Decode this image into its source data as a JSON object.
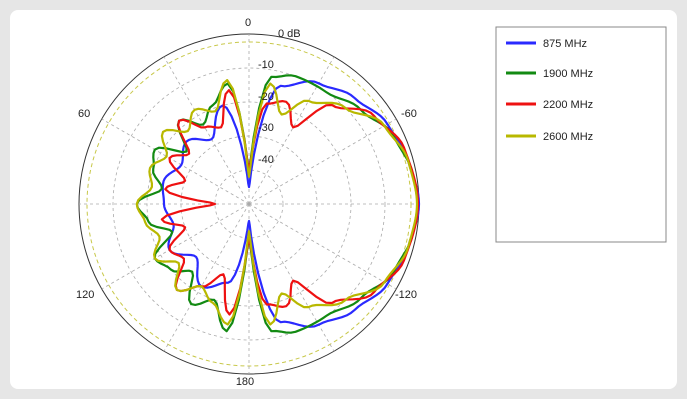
{
  "chart_data": {
    "type": "polar-line",
    "title": "",
    "radial_unit_label": "0 dB",
    "angle_ticks": [
      "0",
      "60",
      "120",
      "180",
      "-120",
      "-60"
    ],
    "radius_ticks": [
      "-10",
      "-20",
      "-30",
      "-40"
    ],
    "r_range_db": [
      -50,
      0
    ],
    "angle_direction": "clockwise-negative (0 at top, -60 upper right, 60 upper left)",
    "grid": true,
    "legend_position": "right",
    "series": [
      {
        "name": "875 MHz",
        "color": "#2a2aff",
        "points": [
          [
            0,
            -45
          ],
          [
            -15,
            -14
          ],
          [
            -30,
            -9
          ],
          [
            -45,
            -6
          ],
          [
            -60,
            -3
          ],
          [
            -75,
            -1.5
          ],
          [
            -90,
            0
          ],
          [
            -105,
            -1.5
          ],
          [
            -120,
            -3
          ],
          [
            -135,
            -6
          ],
          [
            -150,
            -9
          ],
          [
            -165,
            -14
          ],
          [
            180,
            -45
          ],
          [
            165,
            -26
          ],
          [
            150,
            -22
          ],
          [
            135,
            -28
          ],
          [
            120,
            -23
          ],
          [
            105,
            -27
          ],
          [
            90,
            -25
          ],
          [
            75,
            -24
          ],
          [
            60,
            -27
          ],
          [
            45,
            -24
          ],
          [
            30,
            -28
          ],
          [
            15,
            -20
          ]
        ]
      },
      {
        "name": "1900 MHz",
        "color": "#128a12",
        "points": [
          [
            0,
            -40
          ],
          [
            -10,
            -12
          ],
          [
            -20,
            -10
          ],
          [
            -35,
            -10
          ],
          [
            -50,
            -7
          ],
          [
            -65,
            -3
          ],
          [
            -80,
            -1
          ],
          [
            -90,
            -0.5
          ],
          [
            -100,
            -1
          ],
          [
            -115,
            -3
          ],
          [
            -130,
            -7
          ],
          [
            -145,
            -10
          ],
          [
            -160,
            -10
          ],
          [
            -170,
            -12
          ],
          [
            180,
            -40
          ],
          [
            170,
            -12
          ],
          [
            160,
            -20
          ],
          [
            150,
            -16
          ],
          [
            140,
            -24
          ],
          [
            130,
            -20
          ],
          [
            120,
            -18
          ],
          [
            110,
            -26
          ],
          [
            100,
            -20
          ],
          [
            90,
            -17
          ],
          [
            80,
            -24
          ],
          [
            70,
            -20
          ],
          [
            60,
            -18
          ],
          [
            50,
            -26
          ],
          [
            40,
            -18
          ],
          [
            30,
            -23
          ],
          [
            20,
            -19
          ],
          [
            10,
            -14
          ]
        ]
      },
      {
        "name": "2200 MHz",
        "color": "#ee1111",
        "points": [
          [
            0,
            -40
          ],
          [
            -10,
            -20
          ],
          [
            -20,
            -18
          ],
          [
            -30,
            -24
          ],
          [
            -40,
            -12
          ],
          [
            -55,
            -5
          ],
          [
            -70,
            -1.5
          ],
          [
            -90,
            -0.3
          ],
          [
            -110,
            -1.5
          ],
          [
            -125,
            -5
          ],
          [
            -140,
            -12
          ],
          [
            -150,
            -24
          ],
          [
            -160,
            -18
          ],
          [
            -170,
            -20
          ],
          [
            180,
            -40
          ],
          [
            170,
            -17
          ],
          [
            160,
            -28
          ],
          [
            150,
            -22
          ],
          [
            140,
            -17
          ],
          [
            130,
            -25
          ],
          [
            120,
            -23
          ],
          [
            110,
            -30
          ],
          [
            100,
            -24
          ],
          [
            90,
            -40
          ],
          [
            80,
            -25
          ],
          [
            70,
            -30
          ],
          [
            60,
            -23
          ],
          [
            50,
            -27
          ],
          [
            40,
            -18
          ],
          [
            30,
            -24
          ],
          [
            20,
            -26
          ],
          [
            10,
            -16
          ]
        ]
      },
      {
        "name": "2600 MHz",
        "color": "#b8b800",
        "points": [
          [
            0,
            -42
          ],
          [
            -10,
            -14
          ],
          [
            -20,
            -22
          ],
          [
            -30,
            -15
          ],
          [
            -45,
            -10
          ],
          [
            -60,
            -4
          ],
          [
            -75,
            -1.5
          ],
          [
            -90,
            -0.6
          ],
          [
            -105,
            -1.5
          ],
          [
            -120,
            -4
          ],
          [
            -135,
            -10
          ],
          [
            -150,
            -15
          ],
          [
            -160,
            -22
          ],
          [
            -170,
            -14
          ],
          [
            180,
            -42
          ],
          [
            170,
            -14
          ],
          [
            160,
            -19
          ],
          [
            150,
            -22
          ],
          [
            140,
            -17
          ],
          [
            130,
            -23
          ],
          [
            120,
            -18
          ],
          [
            110,
            -22
          ],
          [
            100,
            -19
          ],
          [
            90,
            -17
          ],
          [
            80,
            -21
          ],
          [
            70,
            -19
          ],
          [
            60,
            -22
          ],
          [
            50,
            -17
          ],
          [
            40,
            -22
          ],
          [
            30,
            -18
          ],
          [
            20,
            -21
          ],
          [
            10,
            -13
          ]
        ]
      }
    ]
  }
}
